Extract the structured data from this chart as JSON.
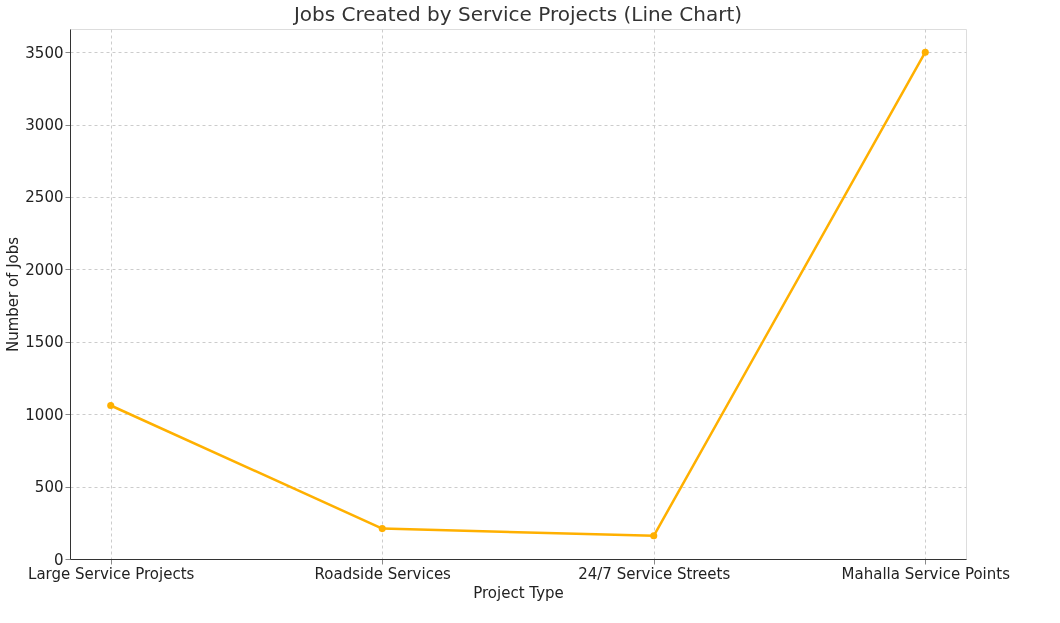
{
  "chart_data": {
    "type": "line",
    "title": "Jobs Created by Service Projects (Line Chart)",
    "xlabel": "Project Type",
    "ylabel": "Number of Jobs",
    "categories": [
      "Large Service Projects",
      "Roadside Services",
      "24/7 Service Streets",
      "Mahalla Service Points"
    ],
    "series": [
      {
        "color": "#ffb000",
        "values": [
          1060,
          210,
          160,
          3500
        ]
      }
    ],
    "ylim": [
      0,
      3660
    ],
    "yticks": [
      0,
      500,
      1000,
      1500,
      2000,
      2500,
      3000,
      3500
    ],
    "grid": true,
    "marker": "circle",
    "line_style": "solid"
  }
}
